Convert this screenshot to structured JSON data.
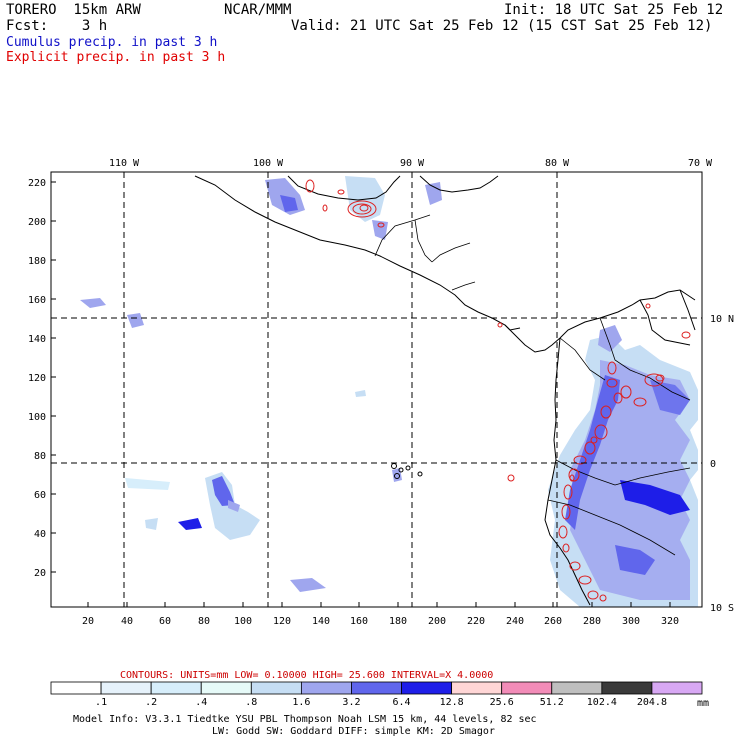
{
  "header": {
    "model_title": "TORERO  15km ARW",
    "center": "NCAR/MMM",
    "init": "Init: 18 UTC Sat 25 Feb 12",
    "fcst": "Fcst:    3 h",
    "valid": "Valid: 21 UTC Sat 25 Feb 12 (15 CST Sat 25 Feb 12)",
    "field1": "Cumulus precip. in past 3 h",
    "field2": "Explicit precip. in past 3 h"
  },
  "colors": {
    "field1": "#1010c8",
    "field2": "#e00000",
    "contour": "#dd2020",
    "grid": "#000000"
  },
  "map": {
    "bottom_ticks": [
      "20",
      "40",
      "60",
      "80",
      "100",
      "120",
      "140",
      "160",
      "180",
      "200",
      "220",
      "240",
      "260",
      "280",
      "300",
      "320"
    ],
    "left_ticks": [
      "20",
      "40",
      "60",
      "80",
      "100",
      "120",
      "140",
      "160",
      "180",
      "200",
      "220"
    ],
    "lon_labels": [
      "110 W",
      "100 W",
      "90 W",
      "80 W",
      "70 W"
    ],
    "lat_labels": [
      "10 N",
      "0",
      "10 S"
    ]
  },
  "contour_info": {
    "text": "CONTOURS:  UNITS=mm  LOW= 0.10000     HIGH=  25.600     INTERVAL=X  4.0000"
  },
  "colorbar": {
    "labels": [
      ".1",
      ".2",
      ".4",
      ".8",
      "1.6",
      "3.2",
      "6.4",
      "12.8",
      "25.6",
      "51.2",
      "102.4",
      "204.8"
    ],
    "units": "mm",
    "colors": [
      "#ffffff",
      "#e6f2fb",
      "#d7eefb",
      "#e6faf8",
      "#c6def4",
      "#9fa6ee",
      "#6066ec",
      "#1e1ee8",
      "#ffd6d6",
      "#f28cb8",
      "#bfbfbf",
      "#3a3a3a",
      "#d8a8f4"
    ]
  },
  "footer": {
    "line1": "Model Info: V3.3.1    Tiedtke YSU PBL  Thompson    Noah LSM  15 km,   44 levels,   82 sec",
    "line2": "LW: Godd SW: Goddard DIFF: simple KM: 2D Smagor"
  }
}
